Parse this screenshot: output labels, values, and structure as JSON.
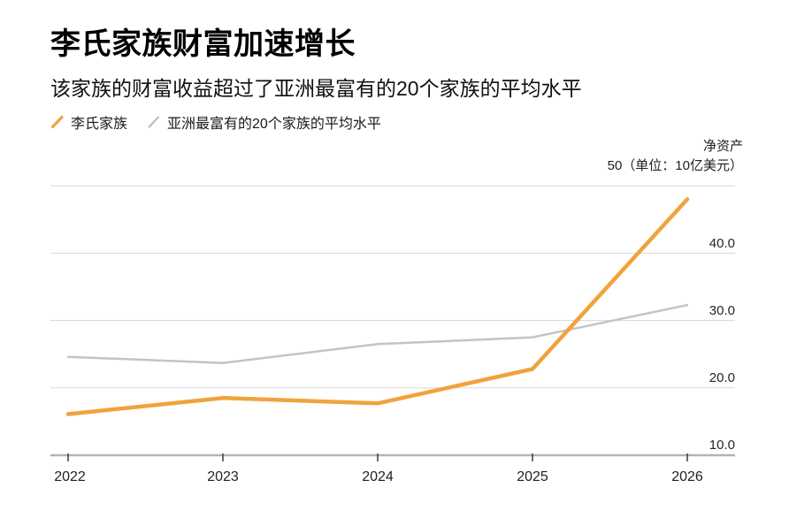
{
  "header": {
    "title": "李氏家族财富加速增长",
    "subtitle": "该家族的财富收益超过了亚洲最富有的20个家族的平均水平"
  },
  "legend": {
    "items": [
      {
        "label": "李氏家族",
        "color": "#F0A33C"
      },
      {
        "label": "亚洲最富有的20个家族的平均水平",
        "color": "#BDBDBD"
      }
    ]
  },
  "axis_note": {
    "line1": "净资产",
    "line2": "50（单位：10亿美元）"
  },
  "chart_data": {
    "type": "line",
    "categories": [
      "2022",
      "2023",
      "2024",
      "2025",
      "2026"
    ],
    "series": [
      {
        "name": "李氏家族",
        "color": "#F0A33C",
        "stroke_width": 4.5,
        "values": [
          16.1,
          18.5,
          17.7,
          22.8,
          48.0
        ]
      },
      {
        "name": "亚洲最富有的20个家族的平均水平",
        "color": "#C4C4C4",
        "stroke_width": 2.5,
        "values": [
          24.6,
          23.7,
          26.5,
          27.5,
          32.3
        ]
      }
    ],
    "title": "李氏家族财富加速增长",
    "subtitle": "该家族的财富收益超过了亚洲最富有的20个家族的平均水平",
    "ylabel": "净资产",
    "unit": "10亿美元",
    "ylim": [
      10,
      50
    ],
    "ytick_values": [
      50,
      40,
      30,
      20,
      10
    ],
    "ytick_labels": [
      "40.0",
      "30.0",
      "20.0",
      "10.0"
    ],
    "top_tick_label": "50",
    "grid": "horizontal",
    "legend_position": "top-left"
  }
}
